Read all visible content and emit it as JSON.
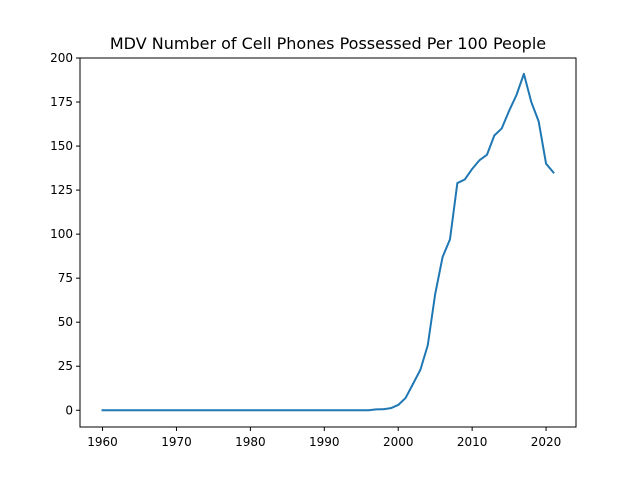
{
  "chart_data": {
    "type": "line",
    "title": "MDV Number of Cell Phones Possessed Per 100 People",
    "xlabel": "",
    "ylabel": "",
    "xlim": [
      1956.95,
      2024.05
    ],
    "ylim": [
      -9.5,
      200
    ],
    "x_ticks": [
      1960,
      1970,
      1980,
      1990,
      2000,
      2010,
      2020
    ],
    "y_ticks": [
      0,
      25,
      50,
      75,
      100,
      125,
      150,
      175,
      200
    ],
    "grid": false,
    "legend": "none",
    "line_color": "#1f77b4",
    "series": [
      {
        "x": [
          1960,
          1961,
          1962,
          1963,
          1964,
          1965,
          1966,
          1967,
          1968,
          1969,
          1970,
          1971,
          1972,
          1973,
          1974,
          1975,
          1976,
          1977,
          1978,
          1979,
          1980,
          1981,
          1982,
          1983,
          1984,
          1985,
          1986,
          1987,
          1988,
          1989,
          1990,
          1991,
          1992,
          1993,
          1994,
          1995,
          1996,
          1997,
          1998,
          1999,
          2000,
          2001,
          2002,
          2003,
          2004,
          2005,
          2006,
          2007,
          2008,
          2009,
          2010,
          2011,
          2012,
          2013,
          2014,
          2015,
          2016,
          2017,
          2018,
          2019,
          2020,
          2021
        ],
        "y": [
          0,
          0,
          0,
          0,
          0,
          0,
          0,
          0,
          0,
          0,
          0,
          0,
          0,
          0,
          0,
          0,
          0,
          0,
          0,
          0,
          0,
          0,
          0,
          0,
          0,
          0,
          0,
          0,
          0,
          0,
          0,
          0,
          0,
          0,
          0,
          0,
          0,
          0.5,
          0.6,
          1.2,
          3,
          7,
          15,
          23,
          37,
          66,
          87,
          97,
          129,
          131,
          137,
          142,
          145,
          156,
          160,
          170,
          179,
          191,
          175,
          164,
          140,
          135
        ]
      }
    ]
  }
}
